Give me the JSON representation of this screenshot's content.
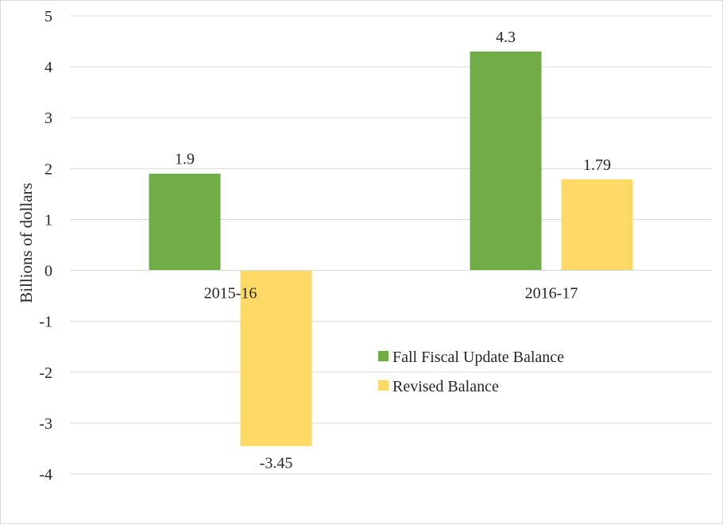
{
  "chart_data": {
    "type": "bar",
    "title": "",
    "xlabel": "",
    "ylabel": "Billions of dollars",
    "ylim": [
      -4,
      5
    ],
    "yticks": [
      5,
      4,
      3,
      2,
      1,
      0,
      -1,
      -2,
      -3,
      -4
    ],
    "ytick_labels": [
      "5",
      "4",
      "3",
      "2",
      "1",
      "0",
      "-1",
      "-2",
      "-3",
      "-4"
    ],
    "categories": [
      "2015-16",
      "2016-17"
    ],
    "grid": true,
    "legend_position": "right-center",
    "series": [
      {
        "name": "Fall Fiscal Update Balance",
        "color": "#70ad47",
        "values": [
          1.9,
          4.3
        ],
        "data_labels": [
          "1.9",
          "4.3"
        ]
      },
      {
        "name": "Revised Balance",
        "color": "#ffd966",
        "values": [
          -3.45,
          1.79
        ],
        "data_labels": [
          "-3.45",
          "1.79"
        ]
      }
    ]
  }
}
